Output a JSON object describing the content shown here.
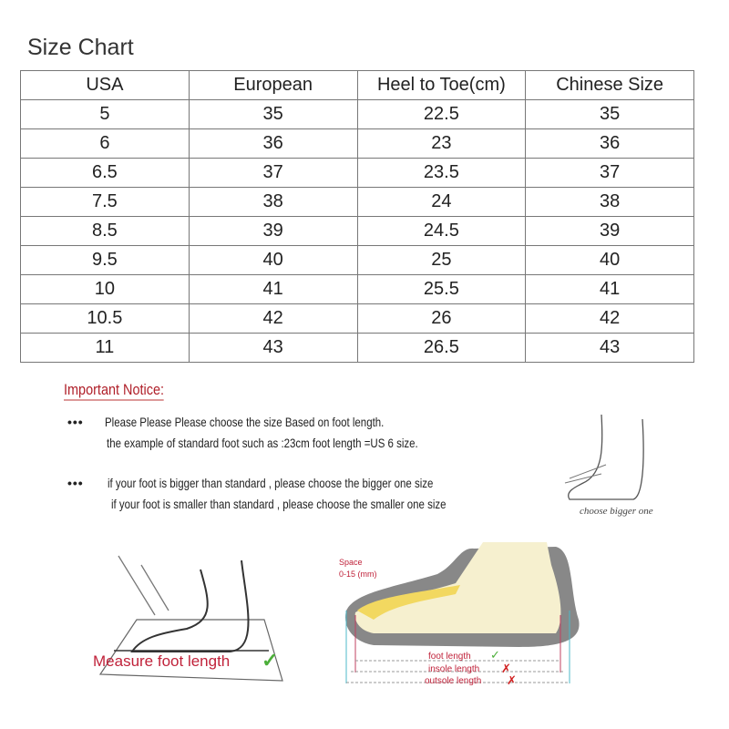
{
  "title": "Size Chart",
  "table": {
    "headers": [
      "USA",
      "European",
      "Heel to Toe(cm)",
      "Chinese Size"
    ],
    "rows": [
      [
        "5",
        "35",
        "22.5",
        "35"
      ],
      [
        "6",
        "36",
        "23",
        "36"
      ],
      [
        "6.5",
        "37",
        "23.5",
        "37"
      ],
      [
        "7.5",
        "38",
        "24",
        "38"
      ],
      [
        "8.5",
        "39",
        "24.5",
        "39"
      ],
      [
        "9.5",
        "40",
        "25",
        "40"
      ],
      [
        "10",
        "41",
        "25.5",
        "41"
      ],
      [
        "10.5",
        "42",
        "26",
        "42"
      ],
      [
        "11",
        "43",
        "26.5",
        "43"
      ]
    ]
  },
  "notice": {
    "heading": "Important Notice:",
    "bullet": "•••",
    "lines": [
      "Please Please Please choose the size Based on foot length.",
      "the example of standard foot such as :23cm foot length =US 6 size.",
      "if your foot is bigger than standard , please choose the bigger one size",
      "if your foot is smaller than standard , please choose the smaller one size"
    ],
    "choose_bigger": "choose bigger one"
  },
  "measure": {
    "label": "Measure foot length"
  },
  "shoe": {
    "space_label": "Space",
    "space_value": "0-15 (mm)",
    "foot_length": "foot length",
    "insole_length": "insole length",
    "outsole_length": "outsole length"
  },
  "colors": {
    "accent_red": "#c0223a",
    "check_green": "#4caf3a"
  }
}
